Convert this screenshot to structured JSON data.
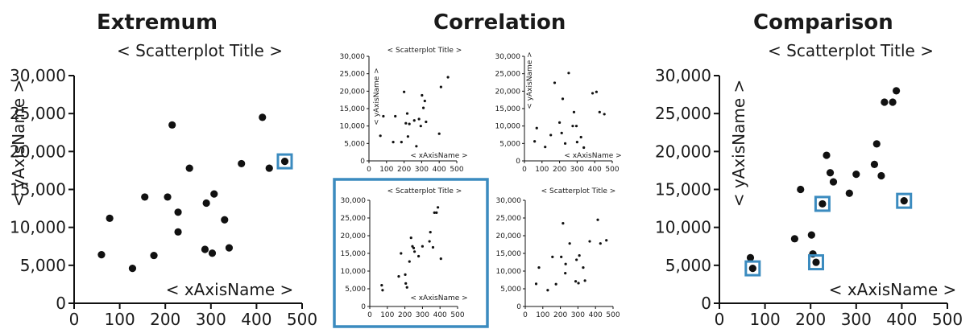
{
  "sections": {
    "extremum": "Extremum",
    "correlation": "Correlation",
    "comparison": "Comparison"
  },
  "highlight_color": "#3b8bbf",
  "point_color": "#111111",
  "chart_data": [
    {
      "id": "extremum",
      "type": "scatter",
      "title": "< Scatterplot Title >",
      "xlabel": "< xAxisName >",
      "ylabel": "< yAxisName >",
      "xlim": [
        0,
        500
      ],
      "ylim": [
        0,
        30000
      ],
      "xticks": [
        "0",
        "100",
        "200",
        "300",
        "400",
        "500"
      ],
      "yticks": [
        "0",
        "5,000",
        "10,000",
        "15,000",
        "20,000",
        "25,000",
        "30,000"
      ],
      "points": [
        [
          60,
          6400
        ],
        [
          78,
          11200
        ],
        [
          128,
          4600
        ],
        [
          155,
          14000
        ],
        [
          175,
          6300
        ],
        [
          205,
          14000
        ],
        [
          215,
          23500
        ],
        [
          228,
          9400
        ],
        [
          228,
          12000
        ],
        [
          253,
          17800
        ],
        [
          287,
          7100
        ],
        [
          290,
          13200
        ],
        [
          303,
          6600
        ],
        [
          307,
          14400
        ],
        [
          330,
          11000
        ],
        [
          340,
          7300
        ],
        [
          367,
          18400
        ],
        [
          413,
          24500
        ],
        [
          428,
          17800
        ],
        [
          462,
          18700
        ]
      ],
      "highlighted": [
        [
          462,
          18700
        ]
      ]
    },
    {
      "id": "correlation-a",
      "type": "scatter",
      "title": "< Scatterplot Title >",
      "xlabel": "< xAxisName >",
      "ylabel": "< yAxisName >",
      "xlim": [
        0,
        500
      ],
      "ylim": [
        0,
        30000
      ],
      "xticks": [
        "0",
        "100",
        "200",
        "300",
        "400",
        "500"
      ],
      "yticks": [
        "0",
        "5,000",
        "10,000",
        "15,000",
        "20,000",
        "25,000",
        "30,000"
      ],
      "points": [
        [
          65,
          7200
        ],
        [
          82,
          12800
        ],
        [
          138,
          5400
        ],
        [
          150,
          12800
        ],
        [
          185,
          5400
        ],
        [
          200,
          19800
        ],
        [
          210,
          10800
        ],
        [
          218,
          13600
        ],
        [
          222,
          7000
        ],
        [
          230,
          10600
        ],
        [
          258,
          11600
        ],
        [
          270,
          4200
        ],
        [
          285,
          12000
        ],
        [
          295,
          10000
        ],
        [
          302,
          18800
        ],
        [
          310,
          15200
        ],
        [
          318,
          17200
        ],
        [
          325,
          11200
        ],
        [
          400,
          7800
        ],
        [
          410,
          21200
        ],
        [
          450,
          24000
        ]
      ],
      "highlighted": []
    },
    {
      "id": "correlation-b",
      "type": "scatter",
      "title": "",
      "xlabel": "< xAxisName >",
      "ylabel": "< yAxisName >",
      "xlim": [
        0,
        500
      ],
      "ylim": [
        0,
        30000
      ],
      "xticks": [
        "0",
        "100",
        "200",
        "300",
        "400",
        "500"
      ],
      "yticks": [
        "0",
        "5,000",
        "10,000",
        "15,000",
        "20,000",
        "25,000",
        "30,000"
      ],
      "points": [
        [
          58,
          5600
        ],
        [
          70,
          9400
        ],
        [
          118,
          4000
        ],
        [
          150,
          7400
        ],
        [
          172,
          22400
        ],
        [
          200,
          11000
        ],
        [
          212,
          8000
        ],
        [
          218,
          17800
        ],
        [
          232,
          5000
        ],
        [
          252,
          25200
        ],
        [
          275,
          10000
        ],
        [
          282,
          14000
        ],
        [
          296,
          10000
        ],
        [
          300,
          5400
        ],
        [
          322,
          6800
        ],
        [
          338,
          3800
        ],
        [
          388,
          19400
        ],
        [
          410,
          19800
        ],
        [
          428,
          14000
        ],
        [
          455,
          13400
        ]
      ],
      "highlighted": []
    },
    {
      "id": "correlation-c",
      "type": "scatter",
      "title": "< Scatterplot Title >",
      "xlabel": "< xAxisName >",
      "ylabel": "",
      "xlim": [
        0,
        500
      ],
      "ylim": [
        0,
        30000
      ],
      "xticks": [
        "0",
        "100",
        "200",
        "300",
        "400",
        "500"
      ],
      "yticks": [
        "0",
        "5,000",
        "10,000",
        "15,000",
        "20,000",
        "25,000",
        "30,000"
      ],
      "points": [
        [
          68,
          6000
        ],
        [
          73,
          4600
        ],
        [
          165,
          8500
        ],
        [
          178,
          15000
        ],
        [
          202,
          9000
        ],
        [
          205,
          6500
        ],
        [
          212,
          5400
        ],
        [
          226,
          12700
        ],
        [
          235,
          19400
        ],
        [
          243,
          17000
        ],
        [
          250,
          16500
        ],
        [
          255,
          15500
        ],
        [
          278,
          14200
        ],
        [
          300,
          17000
        ],
        [
          340,
          18400
        ],
        [
          345,
          21000
        ],
        [
          360,
          16700
        ],
        [
          368,
          26500
        ],
        [
          380,
          26500
        ],
        [
          388,
          28000
        ],
        [
          405,
          13500
        ]
      ],
      "highlighted": []
    },
    {
      "id": "correlation-d",
      "type": "scatter",
      "title": "< Scatterplot Title >",
      "xlabel": "",
      "ylabel": "",
      "xlim": [
        0,
        500
      ],
      "ylim": [
        0,
        30000
      ],
      "xticks": [
        "0",
        "100",
        "200",
        "300",
        "400",
        "500"
      ],
      "yticks": [
        "0",
        "5,000",
        "10,000",
        "15,000",
        "20,000",
        "25,000",
        "30,000"
      ],
      "points": [
        [
          62,
          6400
        ],
        [
          78,
          11000
        ],
        [
          128,
          4600
        ],
        [
          155,
          14000
        ],
        [
          175,
          6300
        ],
        [
          205,
          14000
        ],
        [
          215,
          23500
        ],
        [
          228,
          9400
        ],
        [
          230,
          12000
        ],
        [
          253,
          17800
        ],
        [
          287,
          7100
        ],
        [
          292,
          13200
        ],
        [
          303,
          6600
        ],
        [
          308,
          14400
        ],
        [
          330,
          11000
        ],
        [
          340,
          7300
        ],
        [
          367,
          18400
        ],
        [
          413,
          24500
        ],
        [
          428,
          17800
        ],
        [
          462,
          18700
        ]
      ],
      "highlighted": []
    },
    {
      "id": "comparison",
      "type": "scatter",
      "title": "< Scatterplot Title >",
      "xlabel": "< xAxisName >",
      "ylabel": "< yAxisName >",
      "xlim": [
        0,
        500
      ],
      "ylim": [
        0,
        30000
      ],
      "xticks": [
        "0",
        "100",
        "200",
        "300",
        "400",
        "500"
      ],
      "yticks": [
        "0",
        "5,000",
        "10,000",
        "15,000",
        "20,000",
        "25,000",
        "30,000"
      ],
      "points": [
        [
          68,
          6000
        ],
        [
          73,
          4600
        ],
        [
          165,
          8500
        ],
        [
          178,
          15000
        ],
        [
          202,
          9000
        ],
        [
          205,
          6500
        ],
        [
          212,
          5400
        ],
        [
          226,
          13100
        ],
        [
          235,
          19500
        ],
        [
          243,
          17200
        ],
        [
          250,
          16000
        ],
        [
          285,
          14500
        ],
        [
          300,
          17000
        ],
        [
          340,
          18300
        ],
        [
          345,
          21000
        ],
        [
          355,
          16800
        ],
        [
          362,
          26500
        ],
        [
          380,
          26500
        ],
        [
          388,
          28000
        ],
        [
          405,
          13500
        ]
      ],
      "highlighted": [
        [
          73,
          4600
        ],
        [
          212,
          5400
        ],
        [
          226,
          13100
        ],
        [
          405,
          13500
        ]
      ]
    }
  ]
}
